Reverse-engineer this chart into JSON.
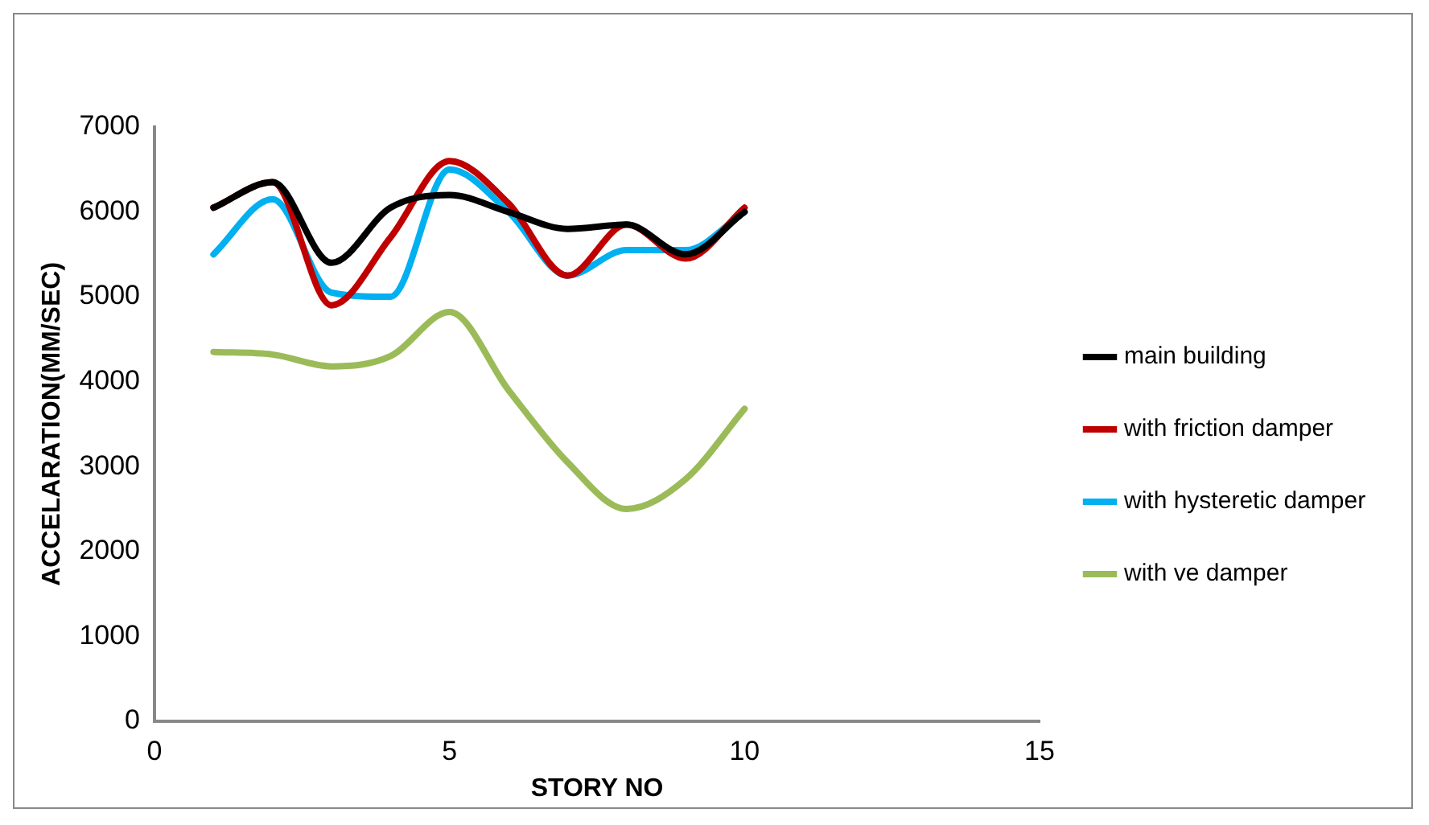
{
  "chart_data": {
    "type": "line",
    "xlabel": "STORY NO",
    "ylabel": "ACCELARATION(MM/SEC)",
    "x": [
      1,
      2,
      3,
      4,
      5,
      6,
      7,
      8,
      9,
      10
    ],
    "xlim": [
      0,
      15
    ],
    "xticks": [
      0,
      5,
      10,
      15
    ],
    "ylim": [
      0,
      7000
    ],
    "yticks": [
      0,
      1000,
      2000,
      3000,
      4000,
      5000,
      6000,
      7000
    ],
    "grid": false,
    "legend": "right",
    "marker": "none",
    "line_style": "solid",
    "series": [
      {
        "name": "main building",
        "color": "#000000",
        "values": [
          6050,
          6350,
          5400,
          6050,
          6200,
          6000,
          5800,
          5850,
          5500,
          6000
        ]
      },
      {
        "name": "with friction damper",
        "color": "#c00000",
        "values": [
          6050,
          6350,
          4900,
          5700,
          6600,
          6100,
          5250,
          5850,
          5450,
          6050
        ]
      },
      {
        "name": "with hysteretic damper",
        "color": "#00b0f0",
        "values": [
          5500,
          6150,
          5050,
          5000,
          6500,
          6000,
          5250,
          5550,
          5550,
          6000
        ]
      },
      {
        "name": "with ve damper",
        "color": "#9bbb59",
        "values": [
          4350,
          4320,
          4180,
          4300,
          4820,
          3900,
          3050,
          2500,
          2850,
          3680
        ]
      }
    ]
  }
}
